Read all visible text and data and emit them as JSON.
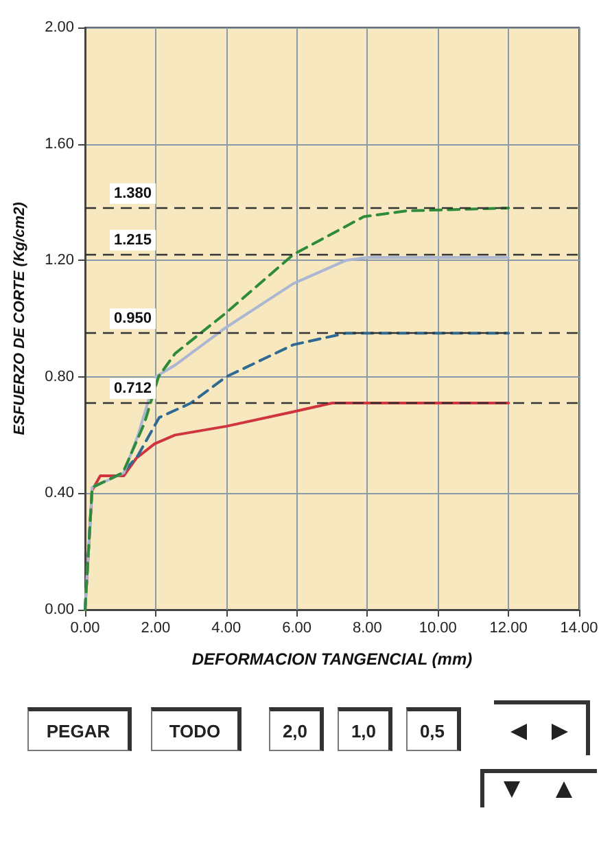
{
  "chart_data": {
    "type": "line",
    "xlabel": "DEFORMACION TANGENCIAL (mm)",
    "ylabel": "ESFUERZO DE CORTE (Kg/cm2)",
    "xlim": [
      0,
      14
    ],
    "xticks": [
      {
        "value": 0,
        "label": "0.00"
      },
      {
        "value": 2,
        "label": "2.00"
      },
      {
        "value": 4,
        "label": "4.00"
      },
      {
        "value": 6,
        "label": "6.00"
      },
      {
        "value": 8,
        "label": "8.00"
      },
      {
        "value": 10,
        "label": "10.00"
      },
      {
        "value": 12,
        "label": "12.00"
      },
      {
        "value": 14,
        "label": "14.00"
      }
    ],
    "ylim": [
      0,
      2
    ],
    "yticks": [
      {
        "value": 0,
        "label": "0.00"
      },
      {
        "value": 0.4,
        "label": "0.40"
      },
      {
        "value": 0.8,
        "label": "0.80"
      },
      {
        "value": 1.2,
        "label": "1.20"
      },
      {
        "value": 1.6,
        "label": "1.60"
      },
      {
        "value": 2,
        "label": "2.00"
      }
    ],
    "grid": true,
    "marker": "none",
    "series": [
      {
        "color": "#d0343f",
        "line_style": "solid",
        "x": [
          0,
          0.2,
          0.43,
          1.1,
          1.45,
          1.97,
          2.55,
          4.0,
          5.9,
          7.0,
          8.0,
          10.0,
          12.0
        ],
        "values": [
          0,
          0.41,
          0.46,
          0.46,
          0.52,
          0.57,
          0.6,
          0.63,
          0.68,
          0.71,
          0.71,
          0.71,
          0.71
        ]
      },
      {
        "color": "#2f6a92",
        "line_style": "dashed",
        "x": [
          0,
          0.2,
          1.07,
          1.5,
          2.1,
          3.0,
          4.0,
          5.9,
          7.4,
          8.0,
          12.0
        ],
        "values": [
          0,
          0.42,
          0.47,
          0.53,
          0.66,
          0.71,
          0.8,
          0.91,
          0.95,
          0.95,
          0.95
        ]
      },
      {
        "color": "#aab6d2",
        "line_style": "solid",
        "x": [
          0,
          0.2,
          1.1,
          1.5,
          2.0,
          2.55,
          4.0,
          5.9,
          7.4,
          8.0,
          12.0
        ],
        "values": [
          0,
          0.42,
          0.47,
          0.6,
          0.8,
          0.84,
          0.97,
          1.12,
          1.2,
          1.21,
          1.21
        ]
      },
      {
        "color": "#2e8b3a",
        "line_style": "dashed",
        "x": [
          0,
          0.2,
          1.07,
          1.68,
          2.08,
          2.55,
          4.0,
          5.9,
          7.9,
          9.1,
          12.0
        ],
        "values": [
          0,
          0.42,
          0.47,
          0.64,
          0.8,
          0.88,
          1.02,
          1.22,
          1.35,
          1.37,
          1.38
        ]
      }
    ],
    "ref_lines": [
      {
        "axis": "y",
        "value": 1.38,
        "label": "1.380",
        "color": "#333333",
        "line_style": "dashed"
      },
      {
        "axis": "y",
        "value": 1.215,
        "label": "1.215",
        "color": "#333333",
        "line_style": "dashed"
      },
      {
        "axis": "y",
        "value": 0.95,
        "label": "0.950",
        "color": "#333333",
        "line_style": "dashed"
      },
      {
        "axis": "y",
        "value": 0.712,
        "label": "0.712",
        "color": "#333333",
        "line_style": "dashed"
      }
    ],
    "annotations": [
      "PEGAR",
      "TODO",
      "2,0",
      "1,0",
      "0,5"
    ]
  }
}
